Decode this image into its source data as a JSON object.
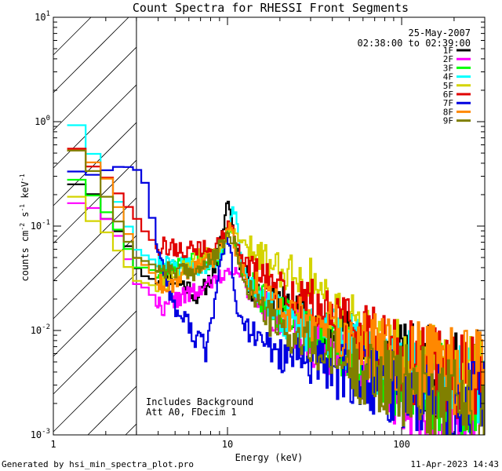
{
  "chart_data": {
    "type": "line",
    "title": "Count Spectra for RHESSI Front Segments",
    "xlabel": "Energy (keV)",
    "ylabel_parts": {
      "a": "counts cm",
      "b": "-2",
      "c": " s",
      "d": "-1",
      "e": " keV",
      "f": "-1"
    },
    "xscale": "log",
    "yscale": "log",
    "xlim": [
      1,
      300
    ],
    "ylim": [
      0.001,
      10
    ],
    "x_ticks": [
      {
        "value": 1,
        "label": "1"
      },
      {
        "value": 10,
        "label": "10"
      },
      {
        "value": 100,
        "label": "100"
      }
    ],
    "y_ticks": [
      {
        "value": 0.001,
        "b": "10",
        "e": "-3"
      },
      {
        "value": 0.01,
        "b": "10",
        "e": "-2"
      },
      {
        "value": 0.1,
        "b": "10",
        "e": "-1"
      },
      {
        "value": 1,
        "b": "10",
        "e": "0"
      },
      {
        "value": 10,
        "b": "10",
        "e": "1"
      }
    ],
    "hatched_region_max_energy": 3,
    "date": "25-May-2007",
    "time_range": "02:38:00 to 02:39:00",
    "annotations": [
      "Includes Background",
      "Att A0, FDecim 1"
    ],
    "footer_left": "Generated by hsi_min_spectra_plot.pro",
    "footer_right": "11-Apr-2023 14:43",
    "series": [
      {
        "name": "1F",
        "color": "#000000",
        "seed": 11,
        "points": [
          [
            1.2,
            0.26
          ],
          [
            1.6,
            0.24
          ],
          [
            2.0,
            0.12
          ],
          [
            2.6,
            0.075
          ],
          [
            3.0,
            0.04
          ],
          [
            3.5,
            0.031
          ],
          [
            4.5,
            0.032
          ],
          [
            5.0,
            0.03
          ],
          [
            5.5,
            0.028
          ],
          [
            6.0,
            0.026
          ],
          [
            6.5,
            0.022
          ],
          [
            7.0,
            0.022
          ],
          [
            8.0,
            0.032
          ],
          [
            8.5,
            0.042
          ],
          [
            9.0,
            0.06
          ],
          [
            9.5,
            0.1
          ],
          [
            10.0,
            0.18
          ],
          [
            10.5,
            0.13
          ],
          [
            11.0,
            0.07
          ],
          [
            12.0,
            0.04
          ],
          [
            14.0,
            0.025
          ],
          [
            20.0,
            0.018
          ],
          [
            30.0,
            0.012
          ],
          [
            45.0,
            0.009
          ],
          [
            60.0,
            0.007
          ],
          [
            80.0,
            0.0055
          ],
          [
            100.0,
            0.0048
          ],
          [
            150.0,
            0.004
          ],
          [
            200.0,
            0.0035
          ],
          [
            290.0,
            0.003
          ]
        ]
      },
      {
        "name": "2F",
        "color": "#ff00ff",
        "seed": 22,
        "points": [
          [
            1.2,
            0.17
          ],
          [
            1.6,
            0.16
          ],
          [
            2.0,
            0.12
          ],
          [
            2.5,
            0.07
          ],
          [
            3.0,
            0.028
          ],
          [
            3.5,
            0.025
          ],
          [
            4.0,
            0.018
          ],
          [
            4.5,
            0.016
          ],
          [
            5.0,
            0.02
          ],
          [
            6.0,
            0.022
          ],
          [
            7.0,
            0.024
          ],
          [
            8.0,
            0.028
          ],
          [
            9.0,
            0.032
          ],
          [
            10.0,
            0.035
          ],
          [
            11.0,
            0.04
          ],
          [
            12.0,
            0.03
          ],
          [
            15.0,
            0.02
          ],
          [
            20.0,
            0.012
          ],
          [
            30.0,
            0.008
          ],
          [
            45.0,
            0.006
          ],
          [
            60.0,
            0.0045
          ],
          [
            80.0,
            0.0035
          ],
          [
            100.0,
            0.0025
          ],
          [
            150.0,
            0.002
          ],
          [
            200.0,
            0.0015
          ],
          [
            290.0,
            0.001
          ]
        ]
      },
      {
        "name": "3F",
        "color": "#00ff00",
        "seed": 33,
        "points": [
          [
            1.2,
            0.33
          ],
          [
            1.6,
            0.22
          ],
          [
            2.0,
            0.14
          ],
          [
            2.5,
            0.08
          ],
          [
            3.0,
            0.04
          ],
          [
            3.5,
            0.04
          ],
          [
            4.0,
            0.035
          ],
          [
            4.5,
            0.037
          ],
          [
            5.0,
            0.04
          ],
          [
            6.0,
            0.045
          ],
          [
            7.0,
            0.05
          ],
          [
            8.0,
            0.045
          ],
          [
            9.0,
            0.05
          ],
          [
            10.0,
            0.09
          ],
          [
            10.5,
            0.1
          ],
          [
            11.0,
            0.07
          ],
          [
            12.0,
            0.04
          ],
          [
            15.0,
            0.022
          ],
          [
            20.0,
            0.015
          ],
          [
            30.0,
            0.01
          ],
          [
            45.0,
            0.007
          ],
          [
            60.0,
            0.005
          ],
          [
            80.0,
            0.004
          ],
          [
            100.0,
            0.0035
          ],
          [
            150.0,
            0.003
          ],
          [
            200.0,
            0.0025
          ],
          [
            290.0,
            0.002
          ]
        ]
      },
      {
        "name": "4F",
        "color": "#00ffff",
        "seed": 44,
        "points": [
          [
            1.2,
            1.3
          ],
          [
            1.5,
            0.7
          ],
          [
            2.0,
            0.3
          ],
          [
            2.5,
            0.14
          ],
          [
            3.0,
            0.06
          ],
          [
            3.5,
            0.05
          ],
          [
            4.0,
            0.045
          ],
          [
            5.0,
            0.04
          ],
          [
            6.0,
            0.042
          ],
          [
            7.0,
            0.04
          ],
          [
            8.0,
            0.045
          ],
          [
            9.0,
            0.055
          ],
          [
            10.0,
            0.08
          ],
          [
            10.5,
            0.12
          ],
          [
            11.0,
            0.15
          ],
          [
            11.5,
            0.08
          ],
          [
            12.0,
            0.04
          ],
          [
            15.0,
            0.022
          ],
          [
            20.0,
            0.014
          ],
          [
            30.0,
            0.01
          ],
          [
            45.0,
            0.008
          ],
          [
            60.0,
            0.006
          ],
          [
            80.0,
            0.005
          ],
          [
            100.0,
            0.004
          ],
          [
            150.0,
            0.0035
          ],
          [
            200.0,
            0.003
          ],
          [
            290.0,
            0.0025
          ]
        ]
      },
      {
        "name": "5F",
        "color": "#d4d400",
        "seed": 55,
        "points": [
          [
            1.2,
            0.27
          ],
          [
            1.6,
            0.12
          ],
          [
            2.0,
            0.09
          ],
          [
            2.5,
            0.05
          ],
          [
            3.0,
            0.03
          ],
          [
            3.5,
            0.028
          ],
          [
            4.0,
            0.026
          ],
          [
            5.0,
            0.035
          ],
          [
            6.0,
            0.045
          ],
          [
            7.0,
            0.05
          ],
          [
            8.0,
            0.055
          ],
          [
            9.0,
            0.06
          ],
          [
            10.0,
            0.08
          ],
          [
            11.0,
            0.09
          ],
          [
            12.0,
            0.07
          ],
          [
            13.0,
            0.06
          ],
          [
            15.0,
            0.055
          ],
          [
            20.0,
            0.04
          ],
          [
            25.0,
            0.035
          ],
          [
            30.0,
            0.03
          ],
          [
            40.0,
            0.018
          ],
          [
            50.0,
            0.012
          ],
          [
            70.0,
            0.007
          ],
          [
            100.0,
            0.005
          ],
          [
            150.0,
            0.004
          ],
          [
            200.0,
            0.0035
          ],
          [
            290.0,
            0.003
          ]
        ]
      },
      {
        "name": "6F",
        "color": "#e00000",
        "seed": 66,
        "points": [
          [
            1.2,
            0.7
          ],
          [
            1.6,
            0.4
          ],
          [
            2.0,
            0.3
          ],
          [
            2.5,
            0.18
          ],
          [
            3.0,
            0.12
          ],
          [
            3.5,
            0.08
          ],
          [
            4.0,
            0.065
          ],
          [
            5.0,
            0.062
          ],
          [
            6.0,
            0.058
          ],
          [
            7.0,
            0.06
          ],
          [
            8.0,
            0.06
          ],
          [
            9.0,
            0.07
          ],
          [
            10.0,
            0.1
          ],
          [
            11.0,
            0.085
          ],
          [
            12.0,
            0.05
          ],
          [
            15.0,
            0.035
          ],
          [
            20.0,
            0.025
          ],
          [
            30.0,
            0.018
          ],
          [
            45.0,
            0.012
          ],
          [
            60.0,
            0.009
          ],
          [
            80.0,
            0.007
          ],
          [
            100.0,
            0.0055
          ],
          [
            150.0,
            0.0045
          ],
          [
            200.0,
            0.004
          ],
          [
            290.0,
            0.0035
          ]
        ]
      },
      {
        "name": "7F",
        "color": "#0000e0",
        "seed": 77,
        "points": [
          [
            1.2,
            0.36
          ],
          [
            1.6,
            0.3
          ],
          [
            2.0,
            0.34
          ],
          [
            2.5,
            0.38
          ],
          [
            3.0,
            0.35
          ],
          [
            3.3,
            0.3
          ],
          [
            3.6,
            0.15
          ],
          [
            4.0,
            0.06
          ],
          [
            4.5,
            0.03
          ],
          [
            5.0,
            0.016
          ],
          [
            5.5,
            0.013
          ],
          [
            6.0,
            0.012
          ],
          [
            6.5,
            0.008
          ],
          [
            7.0,
            0.009
          ],
          [
            7.5,
            0.006
          ],
          [
            8.0,
            0.012
          ],
          [
            8.5,
            0.018
          ],
          [
            9.0,
            0.04
          ],
          [
            9.5,
            0.06
          ],
          [
            10.0,
            0.08
          ],
          [
            10.5,
            0.05
          ],
          [
            11.0,
            0.02
          ],
          [
            12.0,
            0.012
          ],
          [
            15.0,
            0.008
          ],
          [
            20.0,
            0.006
          ],
          [
            30.0,
            0.005
          ],
          [
            45.0,
            0.004
          ],
          [
            60.0,
            0.0035
          ],
          [
            80.0,
            0.003
          ],
          [
            100.0,
            0.0028
          ],
          [
            150.0,
            0.0025
          ],
          [
            200.0,
            0.002
          ],
          [
            290.0,
            0.0018
          ]
        ]
      },
      {
        "name": "8F",
        "color": "#ff8800",
        "seed": 88,
        "points": [
          [
            1.2,
            0.6
          ],
          [
            1.6,
            0.45
          ],
          [
            2.0,
            0.3
          ],
          [
            2.5,
            0.12
          ],
          [
            3.0,
            0.05
          ],
          [
            3.5,
            0.04
          ],
          [
            4.0,
            0.03
          ],
          [
            4.5,
            0.026
          ],
          [
            5.0,
            0.03
          ],
          [
            6.0,
            0.038
          ],
          [
            7.0,
            0.045
          ],
          [
            8.0,
            0.045
          ],
          [
            9.0,
            0.06
          ],
          [
            10.0,
            0.09
          ],
          [
            10.5,
            0.11
          ],
          [
            11.0,
            0.06
          ],
          [
            12.0,
            0.04
          ],
          [
            15.0,
            0.025
          ],
          [
            20.0,
            0.016
          ],
          [
            30.0,
            0.012
          ],
          [
            45.0,
            0.009
          ],
          [
            60.0,
            0.007
          ],
          [
            80.0,
            0.006
          ],
          [
            100.0,
            0.005
          ],
          [
            150.0,
            0.0045
          ],
          [
            200.0,
            0.004
          ],
          [
            290.0,
            0.0035
          ]
        ]
      },
      {
        "name": "9F",
        "color": "#808000",
        "seed": 99,
        "points": [
          [
            1.2,
            0.65
          ],
          [
            1.6,
            0.4
          ],
          [
            2.0,
            0.2
          ],
          [
            2.5,
            0.09
          ],
          [
            3.0,
            0.05
          ],
          [
            3.5,
            0.045
          ],
          [
            4.0,
            0.04
          ],
          [
            5.0,
            0.038
          ],
          [
            6.0,
            0.035
          ],
          [
            7.0,
            0.04
          ],
          [
            8.0,
            0.045
          ],
          [
            9.0,
            0.06
          ],
          [
            10.0,
            0.08
          ],
          [
            11.0,
            0.07
          ],
          [
            12.0,
            0.035
          ],
          [
            15.0,
            0.018
          ],
          [
            20.0,
            0.01
          ],
          [
            30.0,
            0.007
          ],
          [
            45.0,
            0.005
          ],
          [
            60.0,
            0.004
          ],
          [
            80.0,
            0.0035
          ],
          [
            100.0,
            0.003
          ],
          [
            150.0,
            0.0025
          ],
          [
            200.0,
            0.002
          ],
          [
            290.0,
            0.0018
          ]
        ]
      }
    ]
  }
}
